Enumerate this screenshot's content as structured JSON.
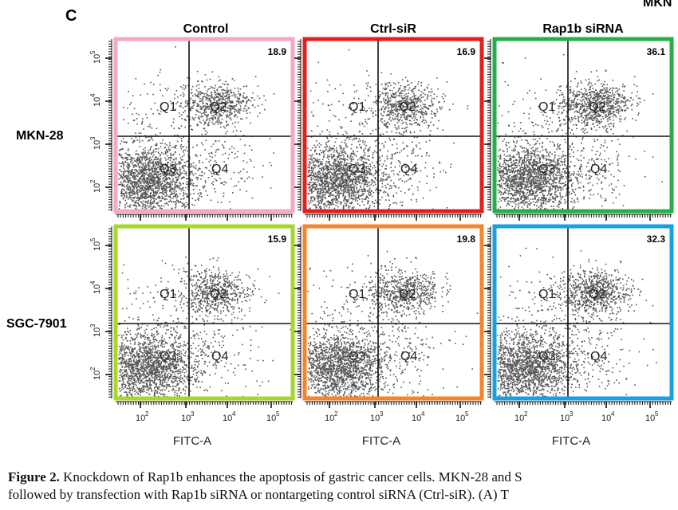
{
  "figure": {
    "panel_tag": "C",
    "cut_label": "MKN",
    "columns": [
      "Control",
      "Ctrl-siR",
      "Rap1b siRNA"
    ],
    "rows": [
      "MKN-28",
      "SGC-7901"
    ],
    "x_axis_label": "FITC-A",
    "tick_labels": [
      "10",
      "2",
      "10",
      "3",
      "10",
      "4",
      "10",
      "5"
    ],
    "quadrant_labels": [
      "Q1",
      "Q2",
      "Q3",
      "Q4"
    ],
    "colors": {
      "pink": "#f6a7c2",
      "red": "#e02020",
      "green": "#27ae4a",
      "lime": "#a6d82a",
      "orange": "#f5852a",
      "blue": "#1a9fe0",
      "dots": "#555555"
    }
  },
  "chart_data": [
    {
      "type": "scatter",
      "title": "Control",
      "row": "MKN-28",
      "xlabel": "FITC-A",
      "x_scale": "log",
      "y_scale": "log",
      "annotation": "18.9",
      "border_color": "#f6a7c2"
    },
    {
      "type": "scatter",
      "title": "Ctrl-siR",
      "row": "MKN-28",
      "xlabel": "FITC-A",
      "x_scale": "log",
      "y_scale": "log",
      "annotation": "16.9",
      "border_color": "#e02020"
    },
    {
      "type": "scatter",
      "title": "Rap1b siRNA",
      "row": "MKN-28",
      "xlabel": "FITC-A",
      "x_scale": "log",
      "y_scale": "log",
      "annotation": "36.1",
      "border_color": "#27ae4a"
    },
    {
      "type": "scatter",
      "title": "Control",
      "row": "SGC-7901",
      "xlabel": "FITC-A",
      "x_scale": "log",
      "y_scale": "log",
      "annotation": "15.9",
      "border_color": "#a6d82a"
    },
    {
      "type": "scatter",
      "title": "Ctrl-siR",
      "row": "SGC-7901",
      "xlabel": "FITC-A",
      "x_scale": "log",
      "y_scale": "log",
      "annotation": "19.8",
      "border_color": "#f5852a"
    },
    {
      "type": "scatter",
      "title": "Rap1b siRNA",
      "row": "SGC-7901",
      "xlabel": "FITC-A",
      "x_scale": "log",
      "y_scale": "log",
      "annotation": "32.3",
      "border_color": "#1a9fe0"
    }
  ],
  "caption": {
    "label": "Figure 2.",
    "line1": "Knockdown of Rap1b enhances the apoptosis of gastric cancer cells. MKN-28 and S",
    "line2": "followed by transfection with Rap1b siRNA or nontargeting control siRNA (Ctrl-siR). (A) T"
  }
}
